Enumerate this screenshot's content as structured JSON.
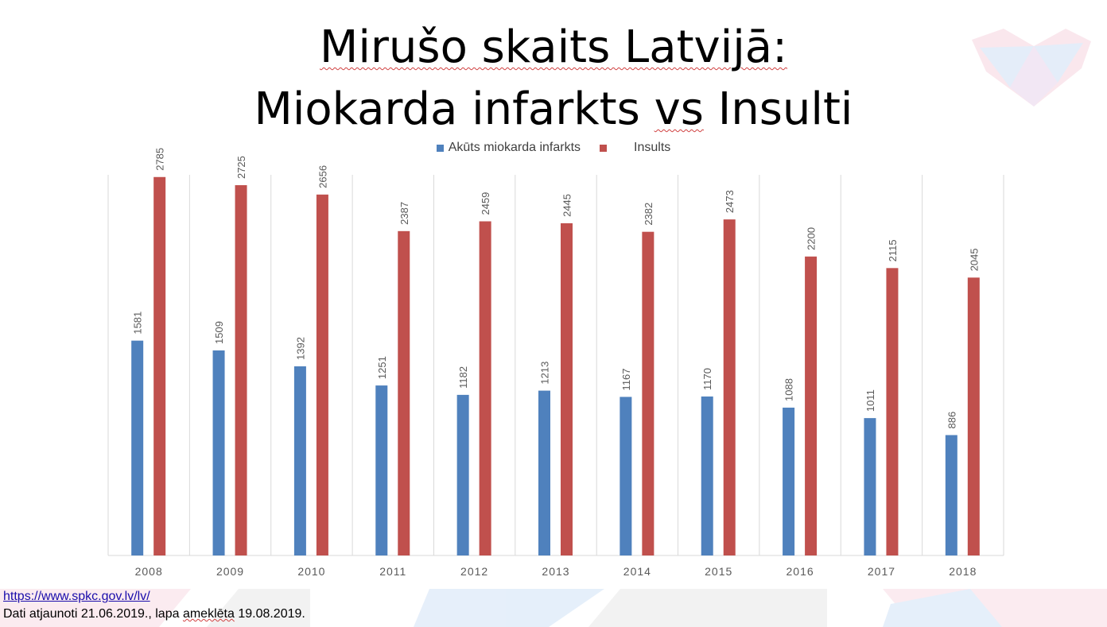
{
  "slide": {
    "title_line1_a": "Mirušo skaits Latvijā:",
    "title_line2_a": "Miokarda infarkts ",
    "title_line2_b": "vs",
    "title_line2_c": " Insulti",
    "source_link": "https://www.spkc.gov.lv/lv/",
    "update_note_a": "Dati atjaunoti 21.06.2019., lapa ",
    "update_note_b": "ameklēta",
    "update_note_c": " 19.08.2019."
  },
  "colors": {
    "series1": "#4f81bd",
    "series2": "#c0504d",
    "grid": "#d9d9d9",
    "label": "#595959"
  },
  "chart_data": {
    "type": "bar",
    "categories": [
      "2008",
      "2009",
      "2010",
      "2011",
      "2012",
      "2013",
      "2014",
      "2015",
      "2016",
      "2017",
      "2018"
    ],
    "series": [
      {
        "name": "Akūts miokarda infarkts",
        "values": [
          1581,
          1509,
          1392,
          1251,
          1182,
          1213,
          1167,
          1170,
          1088,
          1011,
          886
        ]
      },
      {
        "name": "Insults",
        "values": [
          2785,
          2725,
          2656,
          2387,
          2459,
          2445,
          2382,
          2473,
          2200,
          2115,
          2045
        ]
      }
    ],
    "ylim": [
      0,
      3000
    ],
    "legend": "top-center",
    "data_labels": true,
    "grid": "vertical-category-separators"
  }
}
